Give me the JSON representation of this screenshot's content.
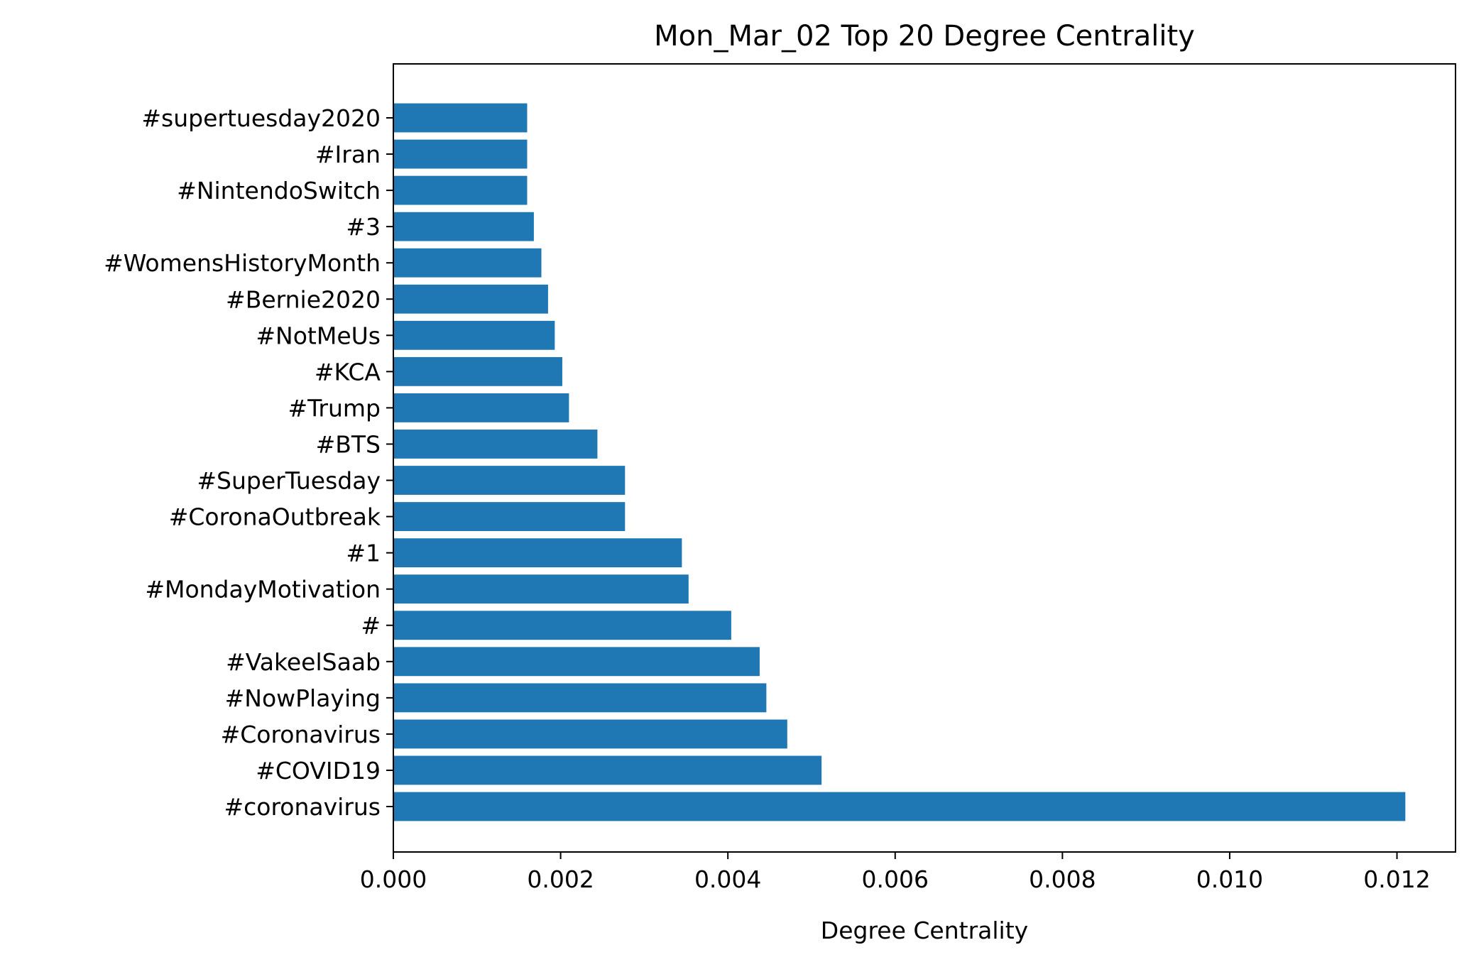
{
  "chart_data": {
    "type": "bar",
    "orientation": "horizontal",
    "title": "Mon_Mar_02 Top 20 Degree Centrality",
    "xlabel": "Degree Centrality",
    "ylabel": "",
    "xlim": [
      0,
      0.0127
    ],
    "grid": false,
    "bar_color": "#1f77b4",
    "x_ticks": [
      "0.000",
      "0.002",
      "0.004",
      "0.006",
      "0.008",
      "0.010",
      "0.012"
    ],
    "categories": [
      "#coronavirus",
      "#COVID19",
      "#Coronavirus",
      "#NowPlaying",
      "#VakeelSaab",
      "#",
      "#MondayMotivation",
      "#1",
      "#CoronaOutbreak",
      "#SuperTuesday",
      "#BTS",
      "#Trump",
      "#KCA",
      "#NotMeUs",
      "#Bernie2020",
      "#WomensHistoryMonth",
      "#3",
      "#NintendoSwitch",
      "#Iran",
      "#supertuesday2020"
    ],
    "values": [
      0.0121,
      0.00512,
      0.00471,
      0.00446,
      0.00438,
      0.00404,
      0.00353,
      0.00345,
      0.00277,
      0.00277,
      0.00244,
      0.0021,
      0.00202,
      0.00193,
      0.00185,
      0.00177,
      0.00168,
      0.0016,
      0.0016,
      0.0016
    ]
  }
}
